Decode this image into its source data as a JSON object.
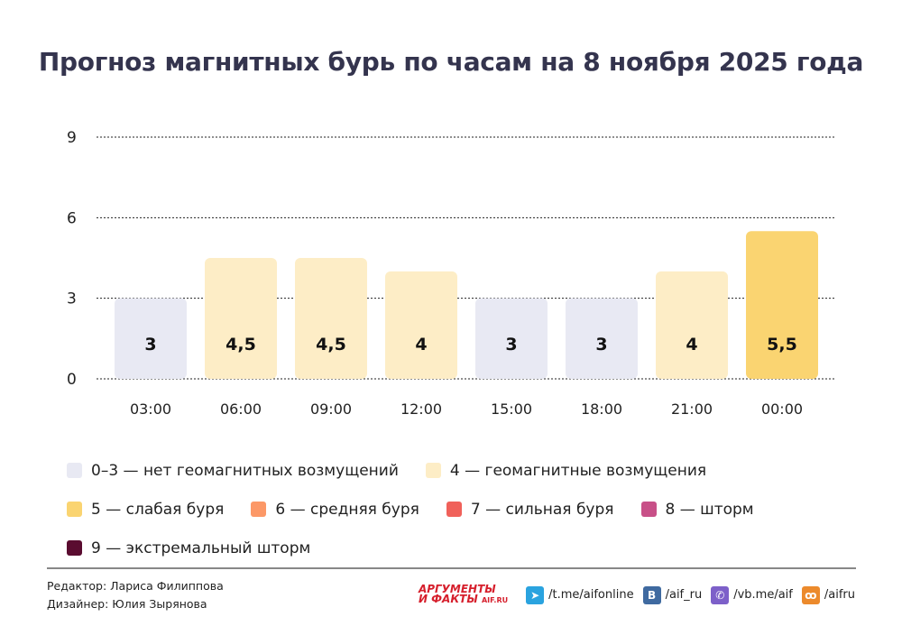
{
  "title": "Прогноз магнитных бурь по часам на 8 ноября 2025 года",
  "chart_data": {
    "type": "bar",
    "title": "Прогноз магнитных бурь по часам на 8 ноября 2025 года",
    "categories": [
      "03:00",
      "06:00",
      "09:00",
      "12:00",
      "15:00",
      "18:00",
      "21:00",
      "00:00"
    ],
    "values": [
      3,
      4.5,
      4.5,
      4,
      3,
      3,
      4,
      5.5
    ],
    "value_labels": [
      "3",
      "4,5",
      "4,5",
      "4",
      "3",
      "3",
      "4",
      "5,5"
    ],
    "yticks": [
      0,
      3,
      6,
      9
    ],
    "ylim": [
      0,
      9
    ],
    "grid": true,
    "xlabel": "",
    "ylabel": ""
  },
  "legend": [
    {
      "label": "0–3 — нет геомагнитных возмущений",
      "color": "#e8e9f3"
    },
    {
      "label": "4 — геомагнитные возмущения",
      "color": "#fdedc6"
    },
    {
      "label": "5 — слабая буря",
      "color": "#fad471"
    },
    {
      "label": "6 — средняя буря",
      "color": "#fc9867"
    },
    {
      "label": "7 — сильная буря",
      "color": "#f0615a"
    },
    {
      "label": "8 — шторм",
      "color": "#c85088"
    },
    {
      "label": "9 — экстремальный шторм",
      "color": "#5a0c30"
    }
  ],
  "credits": {
    "editor": "Редактор: Лариса Филиппова",
    "designer": "Дизайнер: Юлия Зырянова"
  },
  "footer": {
    "logo_top": "АРГУМЕНТЫ",
    "logo_bottom": "И ФАКТЫ",
    "logo_site": "AIF.RU",
    "links": [
      {
        "icon": "telegram-icon",
        "text": "/t.me/aifonline",
        "color": "#2aa3df",
        "glyph": "➤"
      },
      {
        "icon": "vk-icon",
        "text": "/aif_ru",
        "color": "#3f6aa0",
        "glyph": "B"
      },
      {
        "icon": "viber-icon",
        "text": "/vb.me/aif",
        "color": "#7d60c9",
        "glyph": "✆"
      },
      {
        "icon": "odnoklassniki-icon",
        "text": "/aifru",
        "color": "#ec8a2c",
        "glyph": "ꝏ"
      }
    ]
  }
}
